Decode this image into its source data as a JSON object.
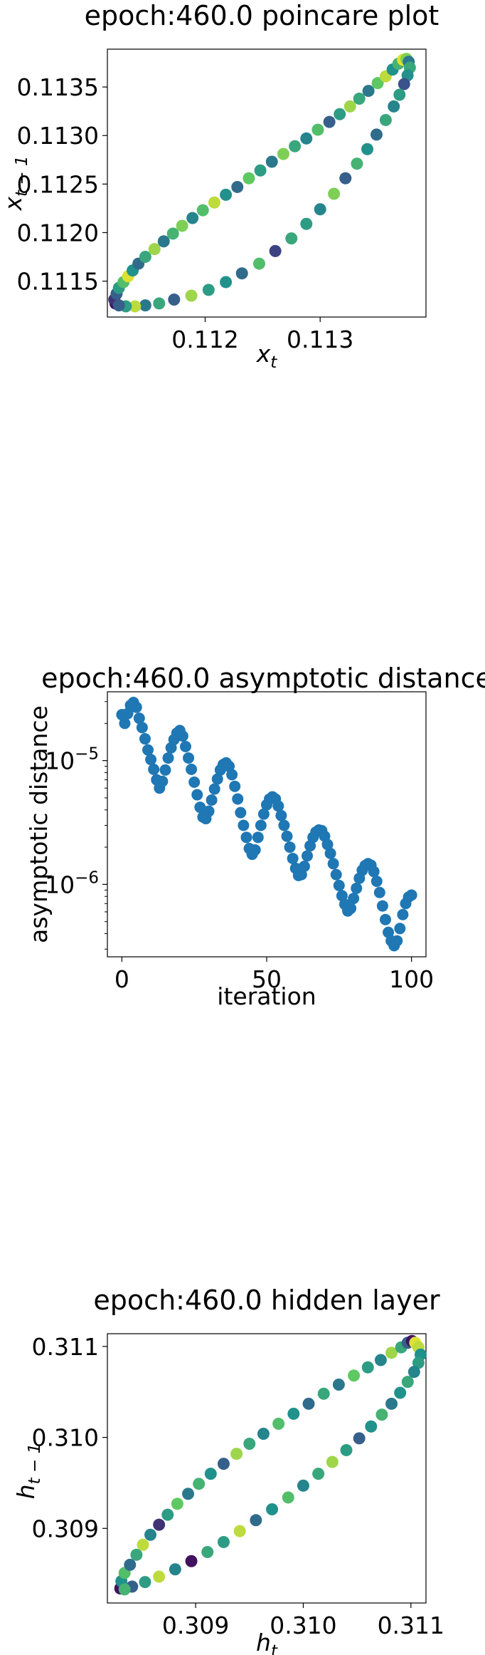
{
  "chart_data": [
    {
      "type": "scatter",
      "title": "epoch:460.0 poincare plot",
      "xlabel": "x_t",
      "ylabel": "x_{t-1}",
      "xlim": [
        0.11115,
        0.11392
      ],
      "ylim": [
        0.11113,
        0.11389
      ],
      "xticks": [
        "0.112",
        "0.113"
      ],
      "yticks": [
        "0.1115",
        "0.1120",
        "0.1125",
        "0.1130",
        "0.1135"
      ],
      "colormap": "viridis",
      "points": [
        [
          0.11122,
          0.11127,
          0.05
        ],
        [
          0.11121,
          0.11131,
          0.15
        ],
        [
          0.11123,
          0.11137,
          0.3
        ],
        [
          0.11125,
          0.11143,
          0.55
        ],
        [
          0.11129,
          0.11149,
          0.7
        ],
        [
          0.11133,
          0.11155,
          0.95
        ],
        [
          0.11137,
          0.11161,
          0.5
        ],
        [
          0.11142,
          0.11168,
          0.35
        ],
        [
          0.11148,
          0.11175,
          0.6
        ],
        [
          0.11156,
          0.11183,
          0.85
        ],
        [
          0.11164,
          0.11191,
          0.4
        ],
        [
          0.11172,
          0.11199,
          0.65
        ],
        [
          0.1118,
          0.11207,
          0.8
        ],
        [
          0.11189,
          0.11215,
          0.45
        ],
        [
          0.11198,
          0.11223,
          0.7
        ],
        [
          0.11208,
          0.11231,
          0.9
        ],
        [
          0.11218,
          0.11239,
          0.5
        ],
        [
          0.11228,
          0.11247,
          0.35
        ],
        [
          0.11238,
          0.11256,
          0.75
        ],
        [
          0.11248,
          0.11264,
          0.55
        ],
        [
          0.11258,
          0.11273,
          0.4
        ],
        [
          0.11268,
          0.11281,
          0.8
        ],
        [
          0.11278,
          0.11289,
          0.6
        ],
        [
          0.11288,
          0.11297,
          0.45
        ],
        [
          0.11298,
          0.11306,
          0.7
        ],
        [
          0.11308,
          0.11314,
          0.3
        ],
        [
          0.11317,
          0.11322,
          0.55
        ],
        [
          0.11326,
          0.1133,
          0.85
        ],
        [
          0.11334,
          0.11338,
          0.6
        ],
        [
          0.11342,
          0.11346,
          0.4
        ],
        [
          0.1135,
          0.11354,
          0.75
        ],
        [
          0.11357,
          0.11361,
          0.9
        ],
        [
          0.11363,
          0.11368,
          0.5
        ],
        [
          0.11368,
          0.11374,
          0.65
        ],
        [
          0.11372,
          0.11378,
          0.95
        ],
        [
          0.11375,
          0.11379,
          0.8
        ],
        [
          0.11377,
          0.11376,
          0.4
        ],
        [
          0.11378,
          0.1137,
          0.6
        ],
        [
          0.11376,
          0.11362,
          0.5
        ],
        [
          0.11373,
          0.11353,
          0.25
        ],
        [
          0.11369,
          0.11342,
          0.55
        ],
        [
          0.11364,
          0.1133,
          0.45
        ],
        [
          0.11357,
          0.11316,
          0.6
        ],
        [
          0.11349,
          0.11301,
          0.35
        ],
        [
          0.11341,
          0.11286,
          0.5
        ],
        [
          0.11332,
          0.11271,
          0.65
        ],
        [
          0.11322,
          0.11256,
          0.3
        ],
        [
          0.11312,
          0.1124,
          0.8
        ],
        [
          0.113,
          0.11224,
          0.45
        ],
        [
          0.11288,
          0.11209,
          0.55
        ],
        [
          0.11275,
          0.11194,
          0.6
        ],
        [
          0.11261,
          0.11181,
          0.2
        ],
        [
          0.11247,
          0.11168,
          0.7
        ],
        [
          0.11232,
          0.11158,
          0.35
        ],
        [
          0.11218,
          0.11149,
          0.5
        ],
        [
          0.11203,
          0.11141,
          0.55
        ],
        [
          0.11188,
          0.11135,
          0.85
        ],
        [
          0.11173,
          0.11131,
          0.3
        ],
        [
          0.1116,
          0.11127,
          0.6
        ],
        [
          0.11148,
          0.11125,
          0.4
        ],
        [
          0.11139,
          0.11124,
          0.9
        ],
        [
          0.11131,
          0.11124,
          0.55
        ],
        [
          0.11125,
          0.11125,
          0.3
        ]
      ]
    },
    {
      "type": "scatter",
      "title": "epoch:460.0 asymptotic distance",
      "xlabel": "iteration",
      "ylabel": "asymptotic distance",
      "xlim": [
        -5,
        105
      ],
      "yscale": "log",
      "ylim": [
        2.6e-07,
        3.6e-05
      ],
      "xticks": [
        "0",
        "50",
        "100"
      ],
      "yticks": [
        "10^-5",
        "10^-6"
      ],
      "color": "#1f77b4",
      "y": [
        2.35e-05,
        2e-05,
        2.4e-05,
        2.8e-05,
        2.95e-05,
        2.7e-05,
        2.2e-05,
        1.85e-05,
        1.5e-05,
        1.22e-05,
        1.02e-05,
        8.5e-06,
        7e-06,
        6e-06,
        6.8e-06,
        8.4e-06,
        1.05e-05,
        1.27e-05,
        1.48e-05,
        1.67e-05,
        1.75e-05,
        1.58e-05,
        1.3e-05,
        1.05e-05,
        8.5e-06,
        6.7e-06,
        5.3e-06,
        4.2e-06,
        3.5e-06,
        3.4e-06,
        3.9e-06,
        4.8e-06,
        5.9e-06,
        7.1e-06,
        8.4e-06,
        9.3e-06,
        9.6e-06,
        9e-06,
        7.7e-06,
        6.2e-06,
        4.9e-06,
        3.8e-06,
        3e-06,
        2.4e-06,
        1.95e-06,
        1.75e-06,
        1.9e-06,
        2.4e-06,
        3e-06,
        3.7e-06,
        4.4e-06,
        4.9e-06,
        5.1e-06,
        4.9e-06,
        4.3e-06,
        3.6e-06,
        3e-06,
        2.45e-06,
        2e-06,
        1.62e-06,
        1.35e-06,
        1.18e-06,
        1.2e-06,
        1.4e-06,
        1.7e-06,
        2.05e-06,
        2.4e-06,
        2.65e-06,
        2.75e-06,
        2.72e-06,
        2.45e-06,
        2.1e-06,
        1.78e-06,
        1.47e-06,
        1.2e-06,
        9.8e-07,
        8.1e-07,
        6.9e-07,
        6.1e-07,
        6.4e-07,
        7.7e-07,
        9.3e-07,
        1.12e-06,
        1.3e-06,
        1.42e-06,
        1.47e-06,
        1.43e-06,
        1.27e-06,
        1.06e-06,
        8.6e-07,
        6.7e-07,
        5.2e-07,
        4.1e-07,
        3.5e-07,
        3.2e-07,
        3.5e-07,
        4.4e-07,
        5.7e-07,
        7e-07,
        7.9e-07,
        8.2e-07
      ]
    },
    {
      "type": "scatter",
      "title": "epoch:460.0 hidden layer",
      "xlabel": "h_t",
      "ylabel": "h_{t-1}",
      "xlim": [
        0.30818,
        0.31114
      ],
      "ylim": [
        0.30818,
        0.31114
      ],
      "xticks": [
        "0.309",
        "0.310",
        "0.311"
      ],
      "yticks": [
        "0.309",
        "0.310",
        "0.311"
      ],
      "colormap": "viridis",
      "points": [
        [
          0.3083,
          0.30834,
          0.05
        ],
        [
          0.30831,
          0.30842,
          0.5
        ],
        [
          0.30834,
          0.30851,
          0.7
        ],
        [
          0.30839,
          0.3086,
          0.35
        ],
        [
          0.30845,
          0.30871,
          0.6
        ],
        [
          0.30851,
          0.30882,
          0.9
        ],
        [
          0.30858,
          0.30893,
          0.45
        ],
        [
          0.30866,
          0.30904,
          0.15
        ],
        [
          0.30874,
          0.30915,
          0.55
        ],
        [
          0.30883,
          0.30927,
          0.75
        ],
        [
          0.30893,
          0.30938,
          0.4
        ],
        [
          0.30903,
          0.30949,
          0.65
        ],
        [
          0.30914,
          0.3096,
          0.5
        ],
        [
          0.30926,
          0.30971,
          0.3
        ],
        [
          0.30938,
          0.30982,
          0.85
        ],
        [
          0.3095,
          0.30993,
          0.6
        ],
        [
          0.30963,
          0.31004,
          0.45
        ],
        [
          0.30977,
          0.31015,
          0.7
        ],
        [
          0.30991,
          0.31026,
          0.5
        ],
        [
          0.31005,
          0.31037,
          0.35
        ],
        [
          0.31019,
          0.31048,
          0.6
        ],
        [
          0.31033,
          0.31058,
          0.4
        ],
        [
          0.31047,
          0.31068,
          0.75
        ],
        [
          0.3106,
          0.31077,
          0.55
        ],
        [
          0.31072,
          0.31085,
          0.45
        ],
        [
          0.31082,
          0.31093,
          0.85
        ],
        [
          0.31091,
          0.31099,
          0.6
        ],
        [
          0.31097,
          0.31104,
          0.3
        ],
        [
          0.31101,
          0.31106,
          0.05
        ],
        [
          0.31104,
          0.31104,
          0.95
        ],
        [
          0.31107,
          0.31099,
          0.9
        ],
        [
          0.31109,
          0.31091,
          0.5
        ],
        [
          0.31107,
          0.31082,
          0.55
        ],
        [
          0.31103,
          0.31072,
          0.45
        ],
        [
          0.31097,
          0.31061,
          0.6
        ],
        [
          0.3109,
          0.31049,
          0.5
        ],
        [
          0.31082,
          0.31037,
          0.4
        ],
        [
          0.31073,
          0.31025,
          0.65
        ],
        [
          0.31063,
          0.31012,
          0.5
        ],
        [
          0.31052,
          0.30999,
          0.3
        ],
        [
          0.3104,
          0.30986,
          0.55
        ],
        [
          0.31027,
          0.30973,
          0.85
        ],
        [
          0.31014,
          0.3096,
          0.6
        ],
        [
          0.31,
          0.30947,
          0.45
        ],
        [
          0.30986,
          0.30934,
          0.7
        ],
        [
          0.30971,
          0.30921,
          0.5
        ],
        [
          0.30956,
          0.30909,
          0.35
        ],
        [
          0.30941,
          0.30897,
          0.9
        ],
        [
          0.30926,
          0.30885,
          0.55
        ],
        [
          0.30911,
          0.30874,
          0.6
        ],
        [
          0.30896,
          0.30864,
          0.05
        ],
        [
          0.30881,
          0.30855,
          0.45
        ],
        [
          0.30866,
          0.30847,
          0.9
        ],
        [
          0.30853,
          0.30841,
          0.55
        ],
        [
          0.30841,
          0.30836,
          0.3
        ],
        [
          0.30834,
          0.30833,
          0.65
        ]
      ]
    }
  ]
}
